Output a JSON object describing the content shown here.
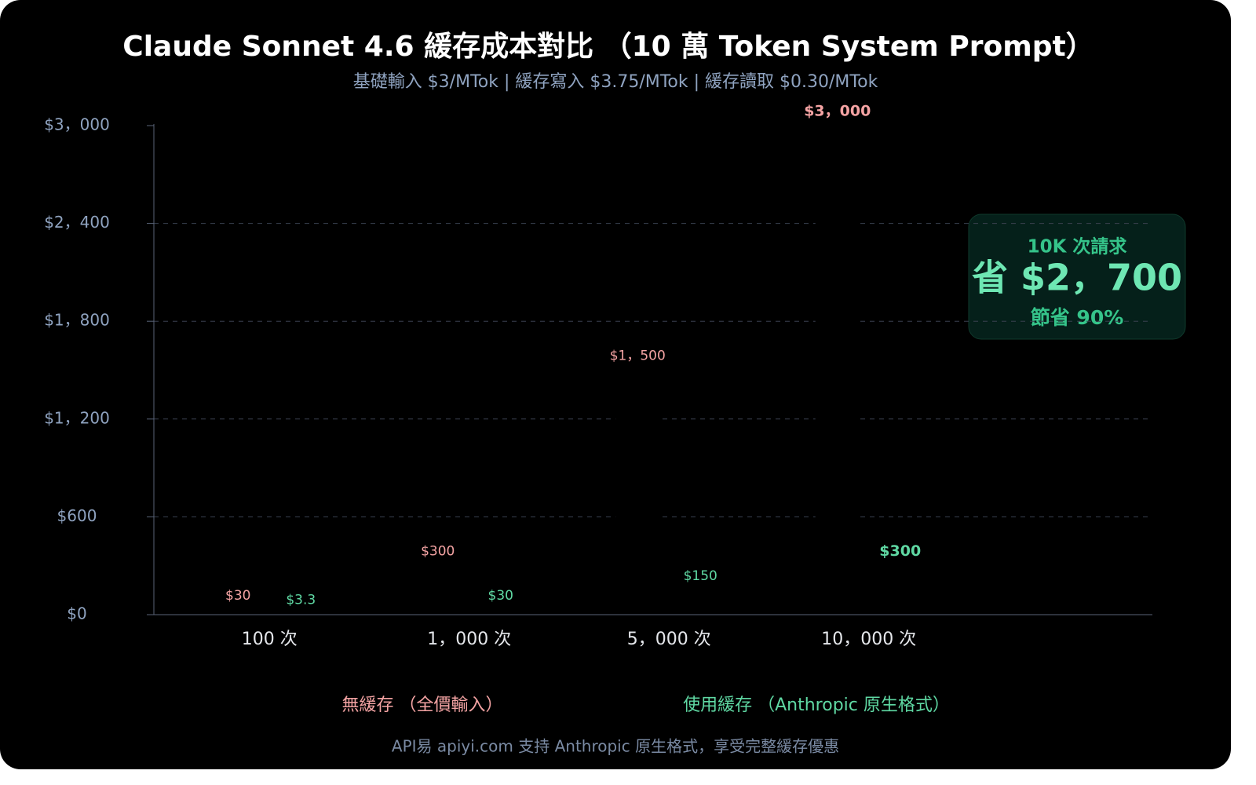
{
  "chart_data": {
    "type": "bar",
    "title": "Claude Sonnet 4.6 緩存成本對比 （10 萬 Token System Prompt）",
    "subtitle": "基礎輸入 $3/MTok | 緩存寫入 $3.75/MTok | 緩存讀取 $0.30/MTok",
    "categories": [
      "100 次",
      "1，000 次",
      "5，000 次",
      "10，000 次"
    ],
    "series": [
      {
        "name": "無緩存 （全價輸入）",
        "color": "#f4a3a3",
        "values": [
          30,
          300,
          1500,
          3000
        ],
        "value_labels": [
          "$30",
          "$300",
          "$1，500",
          "$3，000"
        ]
      },
      {
        "name": "使用緩存 （Anthropic 原生格式）",
        "color": "#5fd8a3",
        "values": [
          3.3,
          30,
          150,
          300
        ],
        "value_labels": [
          "$3.3",
          "$30",
          "$150",
          "$300"
        ]
      }
    ],
    "bar_fill": "#000000",
    "ylim": [
      0,
      3000
    ],
    "yticks": [
      {
        "value": 0,
        "label": "$0"
      },
      {
        "value": 600,
        "label": "$600"
      },
      {
        "value": 1200,
        "label": "$1，200"
      },
      {
        "value": 1800,
        "label": "$1，800"
      },
      {
        "value": 2400,
        "label": "$2，400"
      },
      {
        "value": 3000,
        "label": "$3，000"
      }
    ],
    "grid": true,
    "annotation": {
      "line1": "10K 次請求",
      "line2": "省 $2，700",
      "line3": "節省 90%"
    },
    "footer": "API易 apiyi.com 支持 Anthropic 原生格式，享受完整緩存優惠"
  }
}
